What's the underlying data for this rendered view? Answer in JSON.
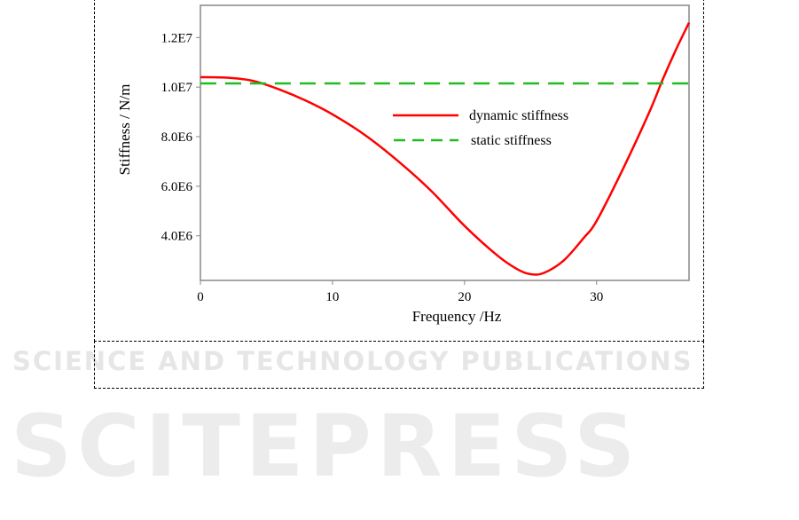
{
  "watermark": {
    "main": "SCITEPRESS",
    "sub": "SCIENCE AND TECHNOLOGY PUBLICATIONS"
  },
  "chart_data": {
    "type": "line",
    "title": "",
    "xlabel": "Frequency /Hz",
    "ylabel": "Stiffness / N/m",
    "xlim": [
      0,
      37
    ],
    "ylim": [
      2200000,
      13300000
    ],
    "xticks": [
      0,
      10,
      20,
      30
    ],
    "xtick_labels": [
      "0",
      "10",
      "20",
      "30"
    ],
    "yticks": [
      4000000,
      6000000,
      8000000,
      10000000,
      12000000
    ],
    "ytick_labels": [
      "4.0E6",
      "6.0E6",
      "8.0E6",
      "1.0E7",
      "1.2E7"
    ],
    "grid": false,
    "legend_position": "center-right",
    "series": [
      {
        "name": "dynamic stiffness",
        "color": "#ff0000",
        "style": "solid",
        "x": [
          0,
          2,
          4,
          6,
          8,
          10,
          12.5,
          15,
          17.5,
          20,
          22.5,
          24,
          25,
          26,
          27.5,
          29,
          30,
          32,
          34,
          35,
          36,
          37
        ],
        "y": [
          10400000,
          10380000,
          10250000,
          9900000,
          9450000,
          8900000,
          8050000,
          7000000,
          5800000,
          4400000,
          3200000,
          2650000,
          2450000,
          2500000,
          3000000,
          3900000,
          4600000,
          6700000,
          9000000,
          10300000,
          11500000,
          12600000
        ]
      },
      {
        "name": "static stiffness",
        "color": "#22bb22",
        "style": "dashed",
        "x": [
          0,
          37
        ],
        "y": [
          10150000,
          10150000
        ]
      }
    ]
  }
}
